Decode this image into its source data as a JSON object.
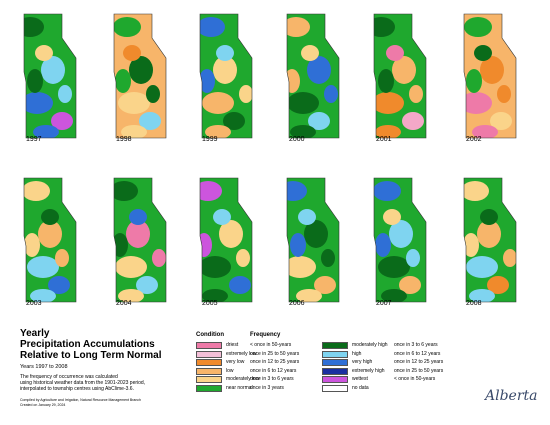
{
  "maps": [
    {
      "year": "1997",
      "base": "#1fa82e",
      "blobs": [
        "#0a6b1a",
        "#7fd4f0",
        "#2f6fd6",
        "#cc55dd",
        "#fad48a"
      ]
    },
    {
      "year": "1998",
      "base": "#f7b56a",
      "blobs": [
        "#f08a2c",
        "#1fa82e",
        "#0a6b1a",
        "#fad48a",
        "#7fd4f0"
      ]
    },
    {
      "year": "1999",
      "base": "#1fa82e",
      "blobs": [
        "#0a6b1a",
        "#7fd4f0",
        "#2f6fd6",
        "#fad48a",
        "#f7b56a"
      ]
    },
    {
      "year": "2000",
      "base": "#1fa82e",
      "blobs": [
        "#0a6b1a",
        "#7fd4f0",
        "#fad48a",
        "#f7b56a",
        "#2f6fd6"
      ]
    },
    {
      "year": "2001",
      "base": "#1fa82e",
      "blobs": [
        "#f7b56a",
        "#f08a2c",
        "#f4a8c8",
        "#ee7aa8",
        "#0a6b1a"
      ]
    },
    {
      "year": "2002",
      "base": "#f7b56a",
      "blobs": [
        "#1fa82e",
        "#f08a2c",
        "#ee7aa8",
        "#fad48a",
        "#0a6b1a"
      ]
    },
    {
      "year": "2003",
      "base": "#1fa82e",
      "blobs": [
        "#0a6b1a",
        "#fad48a",
        "#f7b56a",
        "#7fd4f0",
        "#2f6fd6"
      ]
    },
    {
      "year": "2004",
      "base": "#1fa82e",
      "blobs": [
        "#7fd4f0",
        "#2f6fd6",
        "#0a6b1a",
        "#ee7aa8",
        "#fad48a"
      ]
    },
    {
      "year": "2005",
      "base": "#1fa82e",
      "blobs": [
        "#0a6b1a",
        "#2f6fd6",
        "#7fd4f0",
        "#cc55dd",
        "#fad48a"
      ]
    },
    {
      "year": "2006",
      "base": "#1fa82e",
      "blobs": [
        "#0a6b1a",
        "#fad48a",
        "#f7b56a",
        "#7fd4f0",
        "#2f6fd6"
      ]
    },
    {
      "year": "2007",
      "base": "#1fa82e",
      "blobs": [
        "#2f6fd6",
        "#7fd4f0",
        "#0a6b1a",
        "#f7b56a",
        "#fad48a"
      ]
    },
    {
      "year": "2008",
      "base": "#1fa82e",
      "blobs": [
        "#0a6b1a",
        "#fad48a",
        "#f7b56a",
        "#7fd4f0",
        "#f08a2c"
      ]
    }
  ],
  "title": {
    "line1": "Yearly",
    "line2": "Precipitation Accumulations",
    "line3": "Relative to Long Term Normal",
    "years": "Years 1997 to 2008",
    "desc1": "The frequency of occurrence was calculated",
    "desc2": "using historical weather data from the 1901-2023 period,",
    "desc3": "interpolated to township centres using AbClime-3.6.",
    "credit1": "Compiled by Agriculture and Irrigation, Natural Resource Management Branch",
    "credit2": "Created on January 29, 2024"
  },
  "legend": {
    "condition_header": "Condition",
    "frequency_header": "Frequency",
    "left": [
      {
        "label": "driest",
        "freq": "< once in 50-years",
        "color": "#ee7aa8"
      },
      {
        "label": "extremely low",
        "freq": "once in 25 to 50 years",
        "color": "#f4c0d8"
      },
      {
        "label": "very low",
        "freq": "once in 12 to 25 years",
        "color": "#f08a2c"
      },
      {
        "label": "low",
        "freq": "once in 6 to 12 years",
        "color": "#f7b56a"
      },
      {
        "label": "moderately low",
        "freq": "once in 3 to 6 years",
        "color": "#fad48a"
      },
      {
        "label": "near normal",
        "freq": "once in 3 years",
        "color": "#1fa82e"
      }
    ],
    "right": [
      {
        "label": "moderately high",
        "freq": "once in 3 to 6 years",
        "color": "#0a6b1a"
      },
      {
        "label": "high",
        "freq": "once in 6 to 12 years",
        "color": "#7fd4f0"
      },
      {
        "label": "very high",
        "freq": "once in 12 to 25 years",
        "color": "#2f6fd6"
      },
      {
        "label": "extremely high",
        "freq": "once in 25 to 50 years",
        "color": "#1a2fa0"
      },
      {
        "label": "wettest",
        "freq": "< once in 50-years",
        "color": "#cc55dd"
      },
      {
        "label": "no data",
        "freq": "",
        "color": "#ffffff"
      }
    ]
  },
  "logo": "Alberta"
}
